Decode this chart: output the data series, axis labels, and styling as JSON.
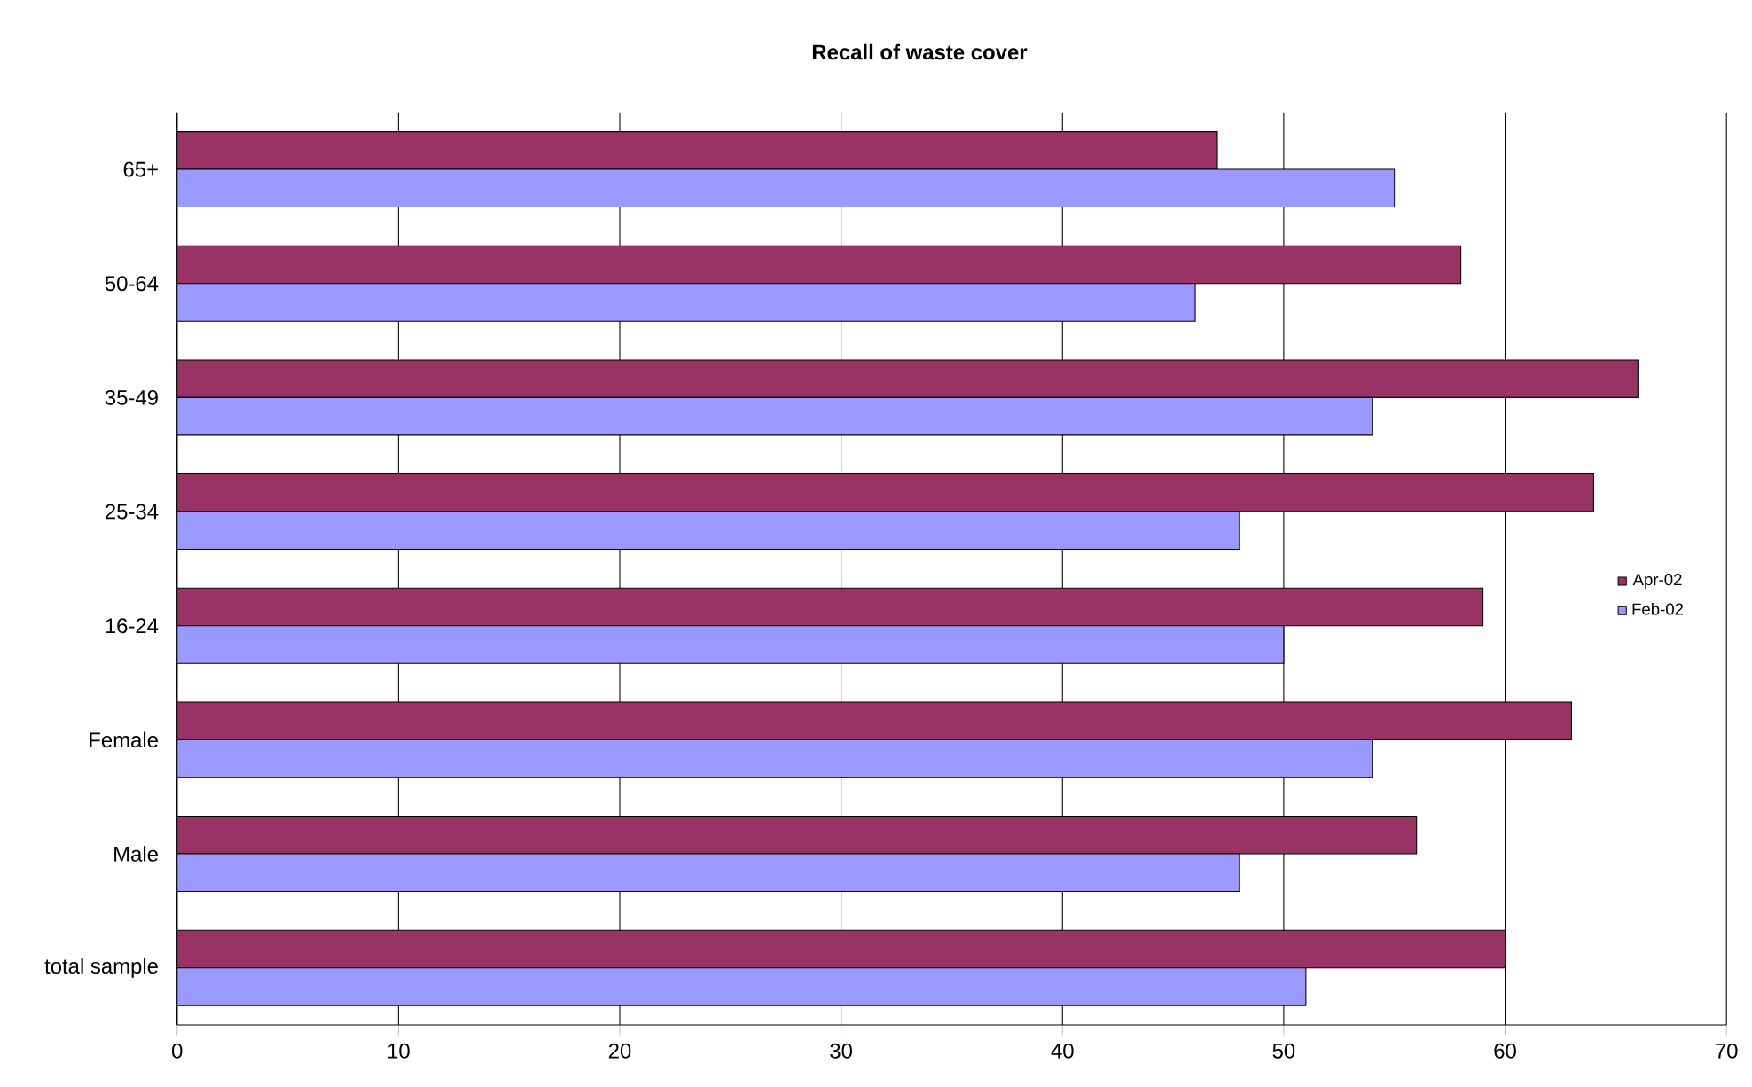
{
  "chart_data": {
    "type": "bar",
    "orientation": "horizontal",
    "title": "Recall of waste cover",
    "categories": [
      "65+",
      "50-64",
      "35-49",
      "25-34",
      "16-24",
      "Female",
      "Male",
      "total sample"
    ],
    "series": [
      {
        "name": "Apr-02",
        "color": "#993366",
        "values": [
          47,
          58,
          66,
          64,
          59,
          63,
          56,
          60
        ]
      },
      {
        "name": "Feb-02",
        "color": "#9999ff",
        "values": [
          55,
          46,
          54,
          48,
          50,
          54,
          48,
          51
        ]
      }
    ],
    "xlim": [
      0,
      70
    ],
    "xticks": [
      0,
      10,
      20,
      30,
      40,
      50,
      60,
      70
    ],
    "grid": "x",
    "legend": "right"
  }
}
